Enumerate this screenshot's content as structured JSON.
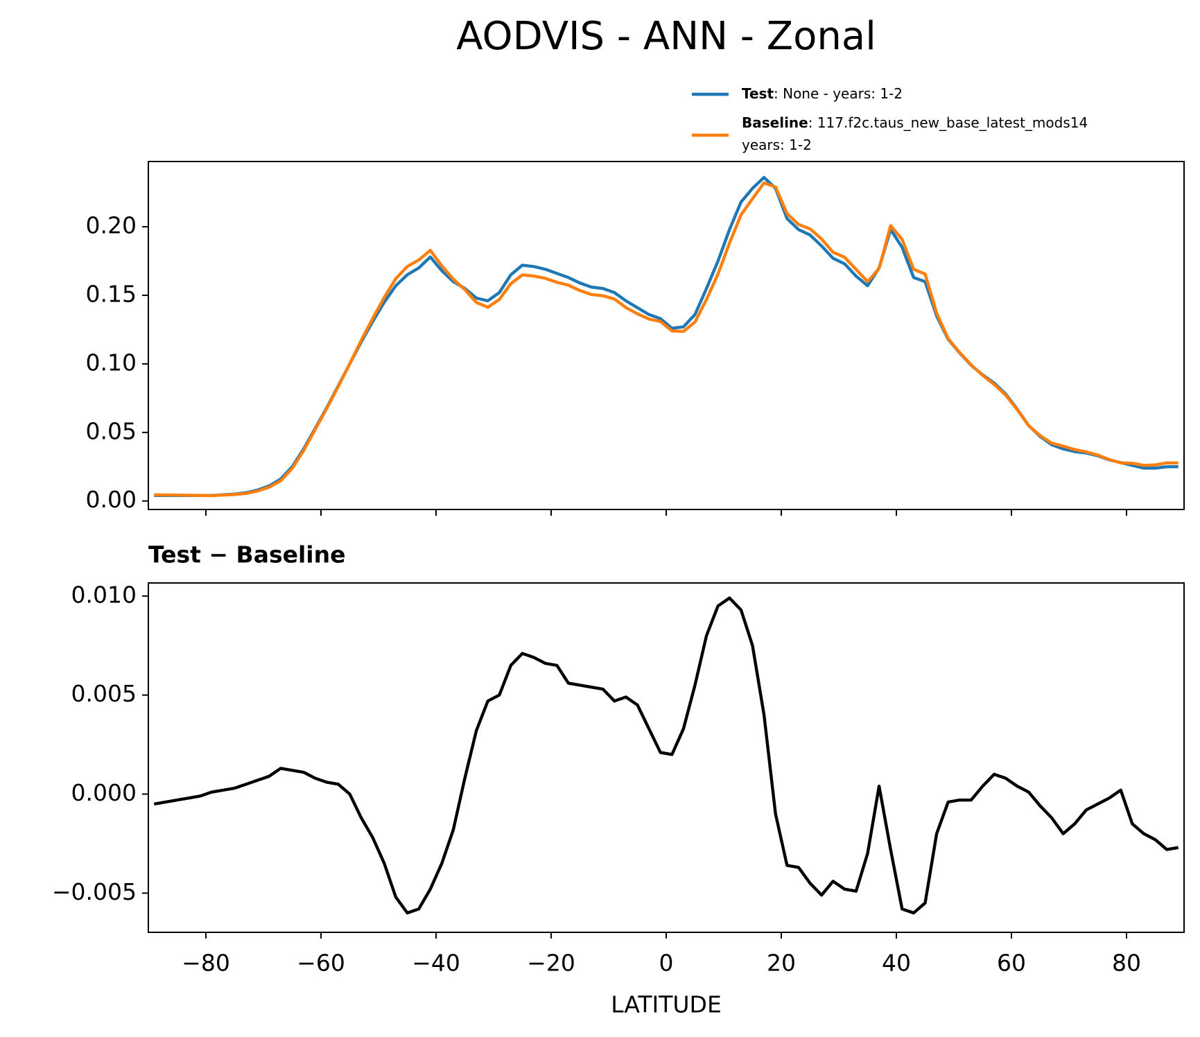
{
  "chart_data": [
    {
      "type": "line",
      "title": "AODVIS - ANN - Zonal",
      "x": [
        -89,
        -87,
        -85,
        -83,
        -81,
        -79,
        -77,
        -75,
        -73,
        -71,
        -69,
        -67,
        -65,
        -63,
        -61,
        -59,
        -57,
        -55,
        -53,
        -51,
        -49,
        -47,
        -45,
        -43,
        -41,
        -39,
        -37,
        -35,
        -33,
        -31,
        -29,
        -27,
        -25,
        -23,
        -21,
        -19,
        -17,
        -15,
        -13,
        -11,
        -9,
        -7,
        -5,
        -3,
        -1,
        1,
        3,
        5,
        7,
        9,
        11,
        13,
        15,
        17,
        19,
        21,
        23,
        25,
        27,
        29,
        31,
        33,
        35,
        37,
        39,
        41,
        43,
        45,
        47,
        49,
        51,
        53,
        55,
        57,
        59,
        61,
        63,
        65,
        67,
        69,
        71,
        73,
        75,
        77,
        79,
        81,
        83,
        85,
        87,
        89
      ],
      "xlim": [
        -90,
        90
      ],
      "ylim": [
        -0.0062,
        0.2476
      ],
      "yticks": [
        {
          "value": 0,
          "label": "0.00"
        },
        {
          "value": 0.05,
          "label": "0.05"
        },
        {
          "value": 0.1,
          "label": "0.10"
        },
        {
          "value": 0.15,
          "label": "0.15"
        },
        {
          "value": 0.2,
          "label": "0.20"
        }
      ],
      "legend": "upper right",
      "series": [
        {
          "name": "Test",
          "description": [
            ": None - years: 1-2"
          ],
          "color": "#1f77b4",
          "values": [
            0.004,
            0.004,
            0.004,
            0.004,
            0.004,
            0.004,
            0.0045,
            0.005,
            0.006,
            0.008,
            0.011,
            0.016,
            0.025,
            0.038,
            0.053,
            0.068,
            0.084,
            0.1,
            0.116,
            0.131,
            0.145,
            0.157,
            0.165,
            0.17,
            0.178,
            0.168,
            0.16,
            0.155,
            0.148,
            0.146,
            0.152,
            0.165,
            0.172,
            0.171,
            0.169,
            0.166,
            0.163,
            0.159,
            0.156,
            0.155,
            0.152,
            0.146,
            0.141,
            0.136,
            0.133,
            0.126,
            0.127,
            0.136,
            0.155,
            0.175,
            0.198,
            0.218,
            0.228,
            0.236,
            0.228,
            0.206,
            0.198,
            0.194,
            0.186,
            0.177,
            0.173,
            0.164,
            0.157,
            0.17,
            0.198,
            0.185,
            0.163,
            0.16,
            0.135,
            0.118,
            0.108,
            0.099,
            0.092,
            0.086,
            0.078,
            0.067,
            0.055,
            0.047,
            0.041,
            0.038,
            0.036,
            0.035,
            0.033,
            0.03,
            0.028,
            0.026,
            0.024,
            0.024,
            0.025,
            0.025
          ]
        },
        {
          "name": "Baseline",
          "description": [
            ": 117.f2c.taus_new_base_latest_mods14",
            "years: 1-2"
          ],
          "color": "#ff7f0e",
          "values": [
            0.0045,
            0.0044,
            0.0043,
            0.0042,
            0.0041,
            0.0039,
            0.0043,
            0.0047,
            0.0055,
            0.0073,
            0.0101,
            0.0147,
            0.0238,
            0.0369,
            0.0522,
            0.0674,
            0.0835,
            0.1,
            0.1172,
            0.1332,
            0.1485,
            0.1622,
            0.171,
            0.1758,
            0.1828,
            0.1715,
            0.1618,
            0.1542,
            0.1448,
            0.1413,
            0.147,
            0.1585,
            0.1649,
            0.1641,
            0.1624,
            0.1595,
            0.1574,
            0.1535,
            0.1506,
            0.1497,
            0.1473,
            0.1411,
            0.1365,
            0.1327,
            0.1309,
            0.124,
            0.1237,
            0.1305,
            0.147,
            0.1655,
            0.1881,
            0.2087,
            0.2205,
            0.232,
            0.229,
            0.2096,
            0.2017,
            0.1985,
            0.1911,
            0.1814,
            0.1778,
            0.1689,
            0.16,
            0.1696,
            0.2008,
            0.1908,
            0.169,
            0.1655,
            0.137,
            0.1184,
            0.1083,
            0.0993,
            0.0916,
            0.085,
            0.0772,
            0.0666,
            0.0549,
            0.0476,
            0.0422,
            0.04,
            0.0375,
            0.0358,
            0.0335,
            0.0302,
            0.0278,
            0.0275,
            0.026,
            0.0263,
            0.0278,
            0.0277
          ]
        }
      ]
    },
    {
      "type": "line",
      "title": "Test − Baseline",
      "xlabel": "LATITUDE",
      "x": [
        -89,
        -87,
        -85,
        -83,
        -81,
        -79,
        -77,
        -75,
        -73,
        -71,
        -69,
        -67,
        -65,
        -63,
        -61,
        -59,
        -57,
        -55,
        -53,
        -51,
        -49,
        -47,
        -45,
        -43,
        -41,
        -39,
        -37,
        -35,
        -33,
        -31,
        -29,
        -27,
        -25,
        -23,
        -21,
        -19,
        -17,
        -15,
        -13,
        -11,
        -9,
        -7,
        -5,
        -3,
        -1,
        1,
        3,
        5,
        7,
        9,
        11,
        13,
        15,
        17,
        19,
        21,
        23,
        25,
        27,
        29,
        31,
        33,
        35,
        37,
        39,
        41,
        43,
        45,
        47,
        49,
        51,
        53,
        55,
        57,
        59,
        61,
        63,
        65,
        67,
        69,
        71,
        73,
        75,
        77,
        79,
        81,
        83,
        85,
        87,
        89
      ],
      "xlim": [
        -90,
        90
      ],
      "xticks": [
        {
          "value": -80,
          "label": "−80"
        },
        {
          "value": -60,
          "label": "−60"
        },
        {
          "value": -40,
          "label": "−40"
        },
        {
          "value": -20,
          "label": "−20"
        },
        0,
        20,
        40,
        60,
        80
      ],
      "ylim": [
        -0.00698,
        0.01066
      ],
      "yticks": [
        {
          "value": -0.005,
          "label": "−0.005"
        },
        {
          "value": 0,
          "label": "0.000"
        },
        0.005,
        {
          "value": 0.01,
          "label": "0.010"
        }
      ],
      "series": [
        {
          "color": "#000000",
          "values": [
            -0.0005,
            -0.0004,
            -0.0003,
            -0.0002,
            -0.0001,
            0.0001,
            0.0002,
            0.0003,
            0.0005,
            0.0007,
            0.0009,
            0.0013,
            0.0012,
            0.0011,
            0.0008,
            0.0006,
            0.0005,
            0,
            -0.0012,
            -0.0022,
            -0.0035,
            -0.0052,
            -0.006,
            -0.0058,
            -0.0048,
            -0.0035,
            -0.0018,
            0.0008,
            0.0032,
            0.0047,
            0.005,
            0.0065,
            0.0071,
            0.0069,
            0.0066,
            0.0065,
            0.0056,
            0.0055,
            0.0054,
            0.0053,
            0.0047,
            0.0049,
            0.0045,
            0.0033,
            0.0021,
            0.002,
            0.0033,
            0.0055,
            0.008,
            0.0095,
            0.0099,
            0.0093,
            0.0075,
            0.004,
            -0.001,
            -0.0036,
            -0.0037,
            -0.0045,
            -0.0051,
            -0.0044,
            -0.0048,
            -0.0049,
            -0.003,
            0.0004,
            -0.0028,
            -0.0058,
            -0.006,
            -0.0055,
            -0.002,
            -0.0004,
            -0.0003,
            -0.0003,
            0.0004,
            0.001,
            0.0008,
            0.0004,
            0.0001,
            -0.0006,
            -0.0012,
            -0.002,
            -0.0015,
            -0.0008,
            -0.0005,
            -0.0002,
            0.0002,
            -0.0015,
            -0.002,
            -0.0023,
            -0.0028,
            -0.0027
          ]
        }
      ]
    }
  ]
}
